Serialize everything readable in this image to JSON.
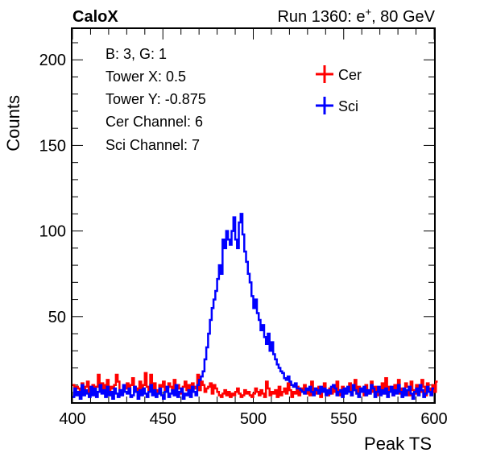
{
  "header": {
    "left": "CaloX",
    "right_prefix": "Run 1360: e",
    "right_sup": "+",
    "right_suffix": ", 80 GeV"
  },
  "info_lines": [
    "B: 3, G: 1",
    "Tower X: 0.5",
    "Tower Y: -0.875",
    "Cer Channel: 6",
    "Sci Channel: 7"
  ],
  "colors": {
    "cer": "#ff0000",
    "sci": "#0000ff",
    "frame": "#000000"
  },
  "chart_data": {
    "type": "line",
    "style": "step-histogram",
    "xlabel": "Peak TS",
    "ylabel": "Counts",
    "xlim": [
      400,
      600
    ],
    "ylim": [
      0,
      218
    ],
    "xticks": [
      400,
      450,
      500,
      550,
      600
    ],
    "yticks": [
      50,
      100,
      150,
      200
    ],
    "bin_width": 1,
    "bin_start": 400,
    "legend": {
      "placement": "top-right"
    },
    "series": [
      {
        "name": "Cer",
        "color": "#ff0000",
        "values": [
          10,
          5,
          9,
          8,
          6,
          11,
          7,
          9,
          12,
          5,
          8,
          10,
          6,
          9,
          16,
          7,
          11,
          8,
          10,
          13,
          6,
          9,
          8,
          10,
          16,
          12,
          7,
          5,
          9,
          8,
          11,
          6,
          10,
          14,
          9,
          7,
          8,
          12,
          5,
          10,
          17,
          9,
          6,
          16,
          8,
          11,
          7,
          5,
          10,
          9,
          12,
          6,
          8,
          11,
          9,
          7,
          13,
          6,
          10,
          8,
          5,
          9,
          12,
          7,
          10,
          6,
          11,
          8,
          9,
          16,
          7,
          12,
          10,
          6,
          8,
          9,
          11,
          5,
          10,
          8,
          6,
          4,
          3,
          5,
          7,
          4,
          6,
          3,
          5,
          4,
          6,
          8,
          5,
          3,
          4,
          7,
          5,
          6,
          4,
          3,
          5,
          8,
          6,
          4,
          7,
          5,
          3,
          12,
          8,
          4,
          6,
          5,
          7,
          3,
          9,
          4,
          6,
          8,
          5,
          11,
          7,
          3,
          6,
          5,
          9,
          4,
          8,
          6,
          10,
          5,
          7,
          4,
          12,
          6,
          8,
          5,
          9,
          3,
          7,
          11,
          6,
          4,
          8,
          5,
          10,
          6,
          12,
          4,
          7,
          9,
          5,
          8,
          6,
          11,
          4,
          7,
          13,
          5,
          9,
          6,
          8,
          4,
          10,
          7,
          5,
          12,
          6,
          9,
          4,
          8,
          7,
          11,
          5,
          14,
          6,
          9,
          8,
          4,
          10,
          7,
          13,
          5,
          8,
          6,
          11,
          9,
          4,
          12,
          7,
          5,
          10,
          8,
          6,
          13,
          9,
          4,
          11,
          7,
          8,
          10,
          6,
          12
        ]
      },
      {
        "name": "Sci",
        "color": "#0000ff",
        "values": [
          3,
          8,
          4,
          6,
          2,
          10,
          4,
          7,
          5,
          3,
          9,
          4,
          8,
          3,
          6,
          10,
          5,
          7,
          3,
          9,
          4,
          6,
          2,
          8,
          5,
          3,
          7,
          4,
          10,
          6,
          5,
          8,
          3,
          4,
          9,
          6,
          2,
          7,
          4,
          8,
          5,
          3,
          6,
          10,
          4,
          7,
          3,
          5,
          8,
          4,
          2,
          6,
          9,
          3,
          5,
          7,
          4,
          10,
          3,
          6,
          8,
          2,
          5,
          4,
          7,
          3,
          9,
          6,
          4,
          10,
          13,
          15,
          18,
          25,
          32,
          40,
          48,
          55,
          60,
          65,
          72,
          80,
          75,
          95,
          90,
          100,
          95,
          92,
          100,
          108,
          95,
          90,
          105,
          110,
          98,
          88,
          82,
          75,
          70,
          62,
          55,
          60,
          52,
          48,
          42,
          45,
          38,
          34,
          40,
          30,
          35,
          28,
          25,
          22,
          20,
          18,
          17,
          14,
          13,
          15,
          12,
          10,
          9,
          11,
          8,
          8,
          7,
          6,
          5,
          8,
          7,
          9,
          6,
          4,
          8,
          7,
          5,
          9,
          6,
          8,
          4,
          7,
          5,
          9,
          10,
          8,
          4,
          6,
          7,
          3,
          8,
          5,
          9,
          6,
          4,
          10,
          7,
          5,
          3,
          8,
          6,
          9,
          4,
          7,
          5,
          10,
          8,
          3,
          6,
          9,
          4,
          7,
          5,
          8,
          3,
          6,
          9,
          4,
          7,
          5,
          10,
          6,
          3,
          8,
          4,
          7,
          9,
          5,
          2,
          6,
          8,
          4,
          10,
          7,
          3,
          5,
          9,
          6,
          4,
          8
        ]
      }
    ]
  }
}
